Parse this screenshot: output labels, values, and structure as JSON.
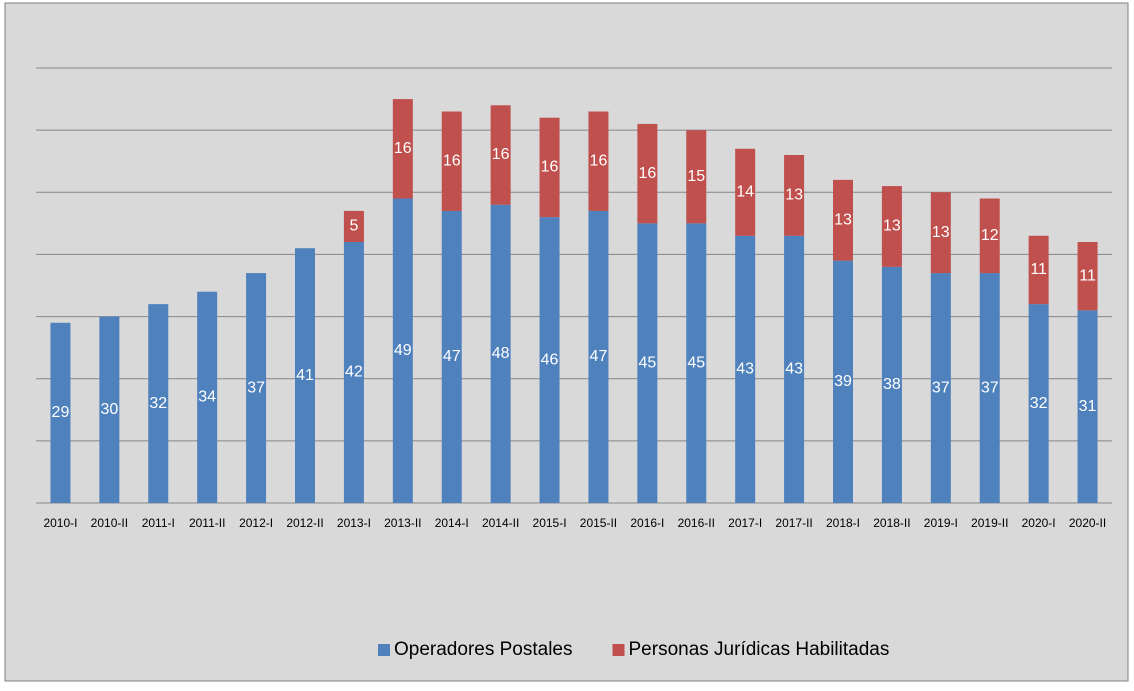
{
  "chart_data": {
    "type": "stacked_bar",
    "categories": [
      "2010-I",
      "2010-II",
      "2011-I",
      "2011-II",
      "2012-I",
      "2012-II",
      "2013-I",
      "2013-II",
      "2014-I",
      "2014-II",
      "2015-I",
      "2015-II",
      "2016-I",
      "2016-II",
      "2017-I",
      "2017-II",
      "2018-I",
      "2018-II",
      "2019-I",
      "2019-II",
      "2020-I",
      "2020-II"
    ],
    "series": [
      {
        "name": "Operadores Postales",
        "color": "#4f81bd",
        "values": [
          29,
          30,
          32,
          34,
          37,
          41,
          42,
          49,
          47,
          48,
          46,
          47,
          45,
          45,
          43,
          43,
          39,
          38,
          37,
          37,
          32,
          31
        ]
      },
      {
        "name": "Personas Jurídicas Habilitadas",
        "color": "#c0504d",
        "values": [
          null,
          null,
          null,
          null,
          null,
          null,
          5,
          16,
          16,
          16,
          16,
          16,
          16,
          15,
          14,
          13,
          13,
          13,
          13,
          12,
          11,
          11
        ]
      }
    ],
    "ylim": [
      0,
      70
    ],
    "yticks": [
      0,
      10,
      20,
      30,
      40,
      50,
      60,
      70
    ],
    "grid": true,
    "legend": "bottom"
  }
}
